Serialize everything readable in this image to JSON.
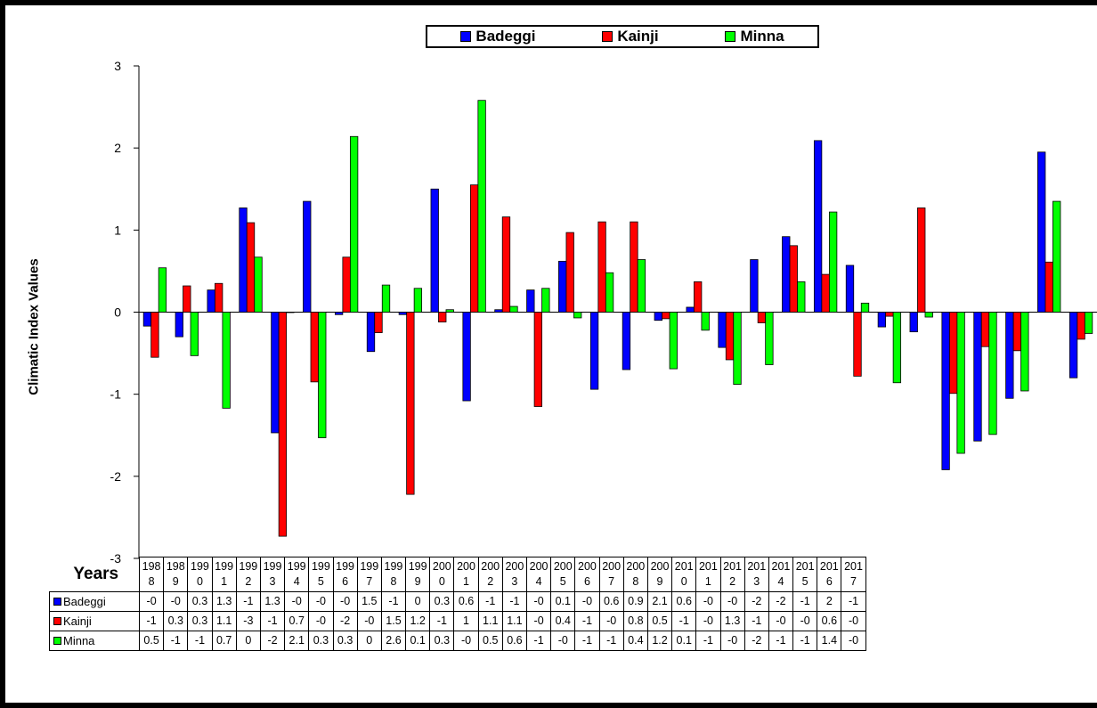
{
  "chart_data": {
    "type": "bar",
    "ylabel": "Climatic Index Values",
    "xlabel": "Years",
    "ylim": [
      -3,
      3
    ],
    "yticks": [
      -3,
      -2,
      -1,
      0,
      1,
      2,
      3
    ],
    "grid": false,
    "legend": "top-center",
    "categories": [
      "1988",
      "1989",
      "1990",
      "1991",
      "1992",
      "1993",
      "1994",
      "1995",
      "1996",
      "1997",
      "1998",
      "1999",
      "2000",
      "2001",
      "2002",
      "2003",
      "2004",
      "2005",
      "2006",
      "2007",
      "2008",
      "2009",
      "2010",
      "2011",
      "2012",
      "2013",
      "2014",
      "2015",
      "2016",
      "2017"
    ],
    "series": [
      {
        "name": "Badeggi",
        "color": "#0000ff",
        "values": [
          -0.17,
          -0.3,
          0.27,
          1.27,
          -1.47,
          1.35,
          -0.03,
          -0.48,
          -0.03,
          1.5,
          -1.08,
          0.03,
          0.27,
          0.62,
          -0.94,
          -0.7,
          -0.1,
          0.06,
          -0.43,
          0.64,
          0.92,
          2.09,
          0.57,
          -0.18,
          -0.24,
          -1.92,
          -1.57,
          -1.05,
          1.95,
          -0.8
        ],
        "table": [
          "-0",
          "-0",
          "0.3",
          "1.3",
          "-1",
          "1.3",
          "-0",
          "-0",
          "-0",
          "1.5",
          "-1",
          "0",
          "0.3",
          "0.6",
          "-1",
          "-1",
          "-0",
          "0.1",
          "-0",
          "0.6",
          "0.9",
          "2.1",
          "0.6",
          "-0",
          "-0",
          "-2",
          "-2",
          "-1",
          "2",
          "-1"
        ]
      },
      {
        "name": "Kainji",
        "color": "#ff0000",
        "values": [
          -0.55,
          0.32,
          0.35,
          1.09,
          -2.73,
          -0.85,
          0.67,
          -0.25,
          -2.22,
          -0.12,
          1.55,
          1.16,
          -1.15,
          0.97,
          1.1,
          1.1,
          -0.08,
          0.37,
          -0.58,
          -0.13,
          0.81,
          0.46,
          -0.78,
          -0.05,
          1.27,
          -0.99,
          -0.42,
          -0.47,
          0.61,
          -0.33
        ],
        "table": [
          "-1",
          "0.3",
          "0.3",
          "1.1",
          "-3",
          "-1",
          "0.7",
          "-0",
          "-2",
          "-0",
          "1.5",
          "1.2",
          "-1",
          "1",
          "1.1",
          "1.1",
          "-0",
          "0.4",
          "-1",
          "-0",
          "0.8",
          "0.5",
          "-1",
          "-0",
          "1.3",
          "-1",
          "-0",
          "-0",
          "0.6",
          "-0"
        ]
      },
      {
        "name": "Minna",
        "color": "#00ff00",
        "values": [
          0.54,
          -0.53,
          -1.17,
          0.67,
          0.0,
          -1.53,
          2.14,
          0.33,
          0.29,
          0.03,
          2.58,
          0.07,
          0.29,
          -0.07,
          0.48,
          0.64,
          -0.69,
          -0.22,
          -0.88,
          -0.64,
          0.37,
          1.22,
          0.11,
          -0.86,
          -0.06,
          -1.72,
          -1.49,
          -0.96,
          1.35,
          -0.26
        ],
        "table": [
          "0.5",
          "-1",
          "-1",
          "0.7",
          "0",
          "-2",
          "2.1",
          "0.3",
          "0.3",
          "0",
          "2.6",
          "0.1",
          "0.3",
          "-0",
          "0.5",
          "0.6",
          "-1",
          "-0",
          "-1",
          "-1",
          "0.4",
          "1.2",
          "0.1",
          "-1",
          "-0",
          "-2",
          "-1",
          "-1",
          "1.4",
          "-0"
        ]
      }
    ]
  }
}
